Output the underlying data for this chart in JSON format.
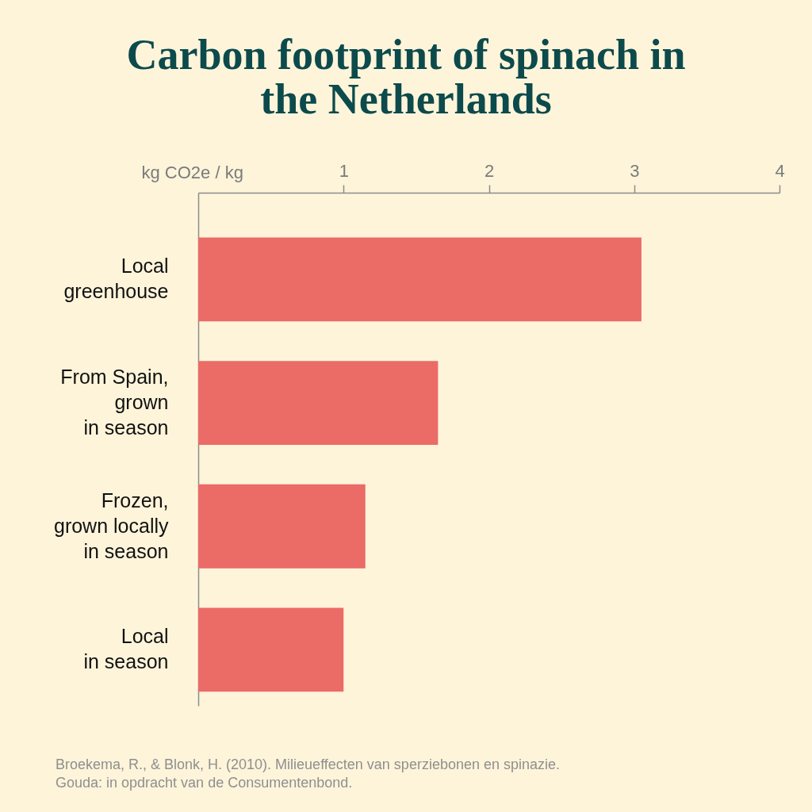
{
  "chart_data": {
    "type": "bar",
    "orientation": "horizontal",
    "title": "Carbon footprint of spinach in\nthe Netherlands",
    "xlabel": "kg CO2e / kg",
    "categories": [
      "Local\ngreenhouse",
      "From Spain,\ngrown\nin season",
      "Frozen,\ngrown locally\nin season",
      "Local\nin season"
    ],
    "values": [
      3.05,
      1.65,
      1.15,
      1.0
    ],
    "color": "#eb6b67",
    "xlim": [
      0,
      4
    ],
    "xticks": [
      1,
      2,
      3,
      4
    ],
    "annotations": [
      "Broekema, R., & Blonk, H. (2010). Milieueffecten van sperziebonen en spinazie.\nGouda: in opdracht van de Consumentenbond."
    ]
  }
}
